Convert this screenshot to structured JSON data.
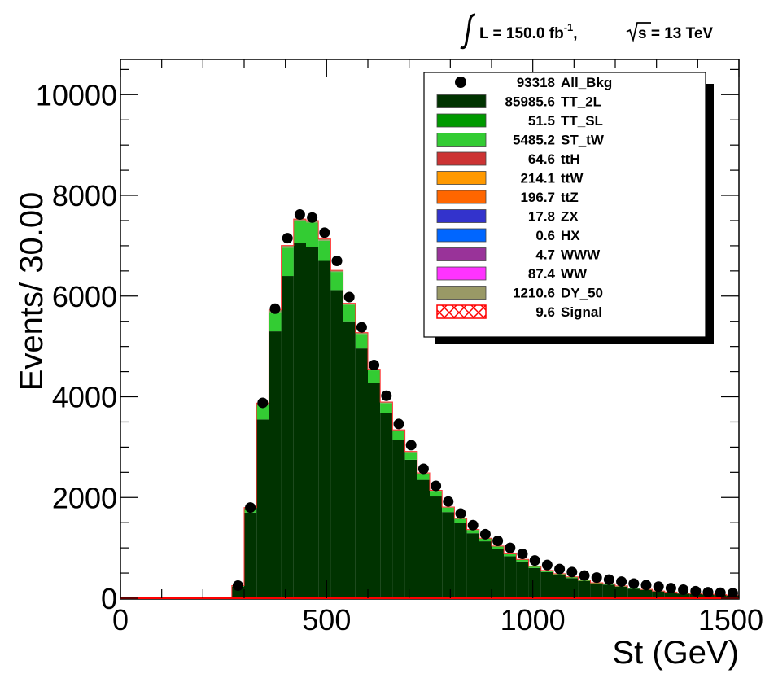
{
  "chart_data": {
    "type": "bar",
    "subtype": "stacked-histogram",
    "lumi_label": {
      "prefix": "L =  150.0 fb",
      "superscript": "-1",
      "comma": ",  ",
      "sqrt_s": "s = 13 TeV"
    },
    "xlabel": "St (GeV)",
    "ylabel": "Events/ 30.00",
    "xlim": [
      0,
      1500
    ],
    "ylim": [
      0,
      10700
    ],
    "bin_width": 30,
    "x_ticks": [
      {
        "value": 0,
        "label": "0"
      },
      {
        "value": 500,
        "label": "500"
      },
      {
        "value": 1000,
        "label": "1000"
      },
      {
        "value": 1500,
        "label": "1500"
      }
    ],
    "y_ticks": [
      {
        "value": 0,
        "label": "0"
      },
      {
        "value": 2000,
        "label": "2000"
      },
      {
        "value": 4000,
        "label": "4000"
      },
      {
        "value": 6000,
        "label": "6000"
      },
      {
        "value": 8000,
        "label": "8000"
      },
      {
        "value": 10000,
        "label": "10000"
      }
    ],
    "bins_x": [
      285,
      315,
      345,
      375,
      405,
      435,
      465,
      495,
      525,
      555,
      585,
      615,
      645,
      675,
      705,
      735,
      765,
      795,
      825,
      855,
      885,
      915,
      945,
      975,
      1005,
      1035,
      1065,
      1095,
      1125,
      1155,
      1185,
      1215,
      1245,
      1275,
      1305,
      1335,
      1365,
      1395,
      1425,
      1455,
      1485
    ],
    "series": [
      {
        "name": "TT_2L",
        "color": "#003300",
        "values": [
          230,
          1700,
          3550,
          5300,
          6400,
          7050,
          6980,
          6700,
          6120,
          5500,
          4960,
          4280,
          3670,
          3150,
          2750,
          2350,
          2020,
          1710,
          1500,
          1290,
          1130,
          980,
          835,
          730,
          600,
          520,
          460,
          400,
          340,
          290,
          270,
          230,
          190,
          165,
          135,
          115,
          95,
          85,
          75,
          65,
          55
        ]
      },
      {
        "name": "ST_tW",
        "color": "#33cc33",
        "values": [
          15,
          90,
          290,
          380,
          560,
          440,
          480,
          400,
          360,
          330,
          290,
          245,
          205,
          175,
          150,
          125,
          110,
          90,
          75,
          65,
          55,
          50,
          42,
          36,
          30,
          26,
          22,
          20,
          17,
          15,
          13,
          11,
          10,
          8,
          7,
          6,
          5,
          5,
          4,
          4,
          3
        ]
      },
      {
        "name": "DY_50",
        "color": "#999966",
        "values": [
          5,
          10,
          35,
          45,
          45,
          40,
          40,
          35,
          32,
          28,
          25,
          22,
          20,
          18,
          16,
          14,
          12,
          11,
          10,
          9,
          8,
          7,
          6,
          6,
          5,
          5,
          4,
          4,
          3,
          3,
          3,
          3,
          2,
          2,
          2,
          2,
          2,
          1,
          1,
          1,
          1
        ]
      }
    ],
    "all_bkg_points": [
      250,
      1800,
      3880,
      5750,
      7150,
      7620,
      7560,
      7260,
      6700,
      5980,
      5380,
      4630,
      4020,
      3460,
      3040,
      2570,
      2230,
      1920,
      1680,
      1450,
      1270,
      1140,
      1000,
      880,
      750,
      660,
      580,
      520,
      450,
      410,
      370,
      330,
      290,
      260,
      230,
      200,
      170,
      140,
      120,
      110,
      100
    ],
    "legend": [
      {
        "count": "93318",
        "name": "All_Bkg",
        "color": "#000000",
        "marker": "circle"
      },
      {
        "count": "85985.6",
        "name": "TT_2L",
        "color": "#003300",
        "marker": "box"
      },
      {
        "count": "51.5",
        "name": "TT_SL",
        "color": "#009900",
        "marker": "box"
      },
      {
        "count": "5485.2",
        "name": "ST_tW",
        "color": "#33cc33",
        "marker": "box"
      },
      {
        "count": "64.6",
        "name": "ttH",
        "color": "#cc3333",
        "marker": "box"
      },
      {
        "count": "214.1",
        "name": "ttW",
        "color": "#ff9900",
        "marker": "box"
      },
      {
        "count": "196.7",
        "name": "ttZ",
        "color": "#ff6600",
        "marker": "box"
      },
      {
        "count": "17.8",
        "name": "ZX",
        "color": "#3333cc",
        "marker": "box"
      },
      {
        "count": "0.6",
        "name": "HX",
        "color": "#0066ff",
        "marker": "box"
      },
      {
        "count": "4.7",
        "name": "WWW",
        "color": "#993399",
        "marker": "box"
      },
      {
        "count": "87.4",
        "name": "WW",
        "color": "#ff33ff",
        "marker": "box"
      },
      {
        "count": "1210.6",
        "name": "DY_50",
        "color": "#999966",
        "marker": "box"
      },
      {
        "count": "9.6",
        "name": "Signal",
        "color": "#ff0000",
        "marker": "hatch"
      }
    ],
    "legend_position": "top-right",
    "grid": false
  }
}
